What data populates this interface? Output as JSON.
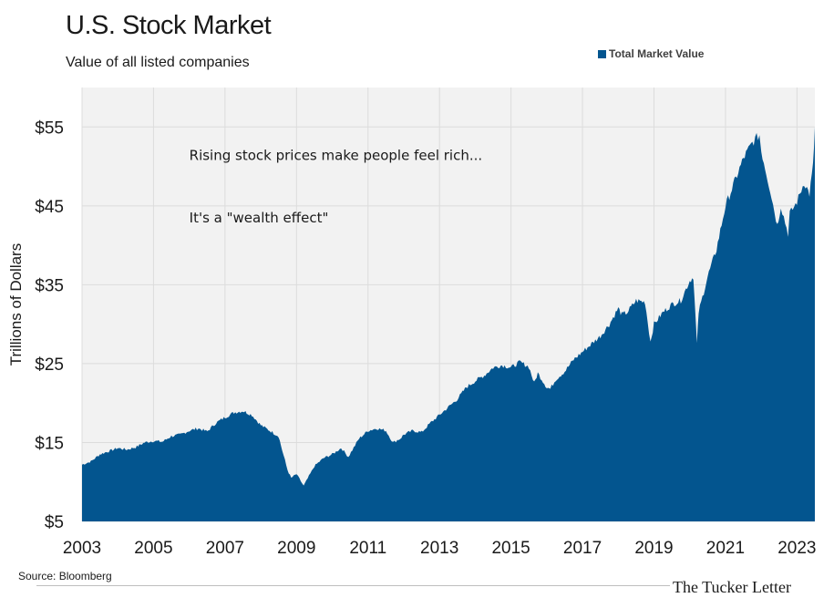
{
  "chart_data": {
    "type": "area",
    "title": "U.S. Stock Market",
    "subtitle": "Value of all listed companies",
    "ylabel": "Trillions of Dollars",
    "xlabel": "",
    "ylim": [
      5,
      60
    ],
    "xlim": [
      2003.0,
      2023.5
    ],
    "yticks": [
      5,
      15,
      25,
      35,
      45,
      55
    ],
    "ytick_labels": [
      "$5",
      "$15",
      "$25",
      "$35",
      "$45",
      "$55"
    ],
    "xticks": [
      2003,
      2005,
      2007,
      2009,
      2011,
      2013,
      2015,
      2017,
      2019,
      2021,
      2023
    ],
    "xtick_labels": [
      "2003",
      "2005",
      "2007",
      "2009",
      "2011",
      "2013",
      "2015",
      "2017",
      "2019",
      "2021",
      "2023"
    ],
    "grid": true,
    "legend_position": "top-right",
    "colors": {
      "series": "#03558f",
      "plot_bg": "#f2f2f2",
      "grid": "#dcdcdc"
    },
    "series": [
      {
        "name": "Total Market Value",
        "x": [
          2003.0,
          2003.25,
          2003.5,
          2003.75,
          2004.0,
          2004.25,
          2004.5,
          2004.75,
          2005.0,
          2005.25,
          2005.5,
          2005.75,
          2006.0,
          2006.25,
          2006.5,
          2006.75,
          2007.0,
          2007.25,
          2007.5,
          2007.75,
          2008.0,
          2008.25,
          2008.5,
          2008.6,
          2008.75,
          2008.85,
          2009.0,
          2009.2,
          2009.5,
          2009.75,
          2010.0,
          2010.25,
          2010.45,
          2010.75,
          2011.0,
          2011.25,
          2011.5,
          2011.7,
          2011.9,
          2012.0,
          2012.25,
          2012.5,
          2012.75,
          2013.0,
          2013.25,
          2013.5,
          2013.75,
          2014.0,
          2014.25,
          2014.5,
          2014.75,
          2015.0,
          2015.25,
          2015.5,
          2015.65,
          2015.75,
          2016.0,
          2016.1,
          2016.25,
          2016.5,
          2016.75,
          2017.0,
          2017.25,
          2017.5,
          2017.75,
          2018.0,
          2018.1,
          2018.25,
          2018.5,
          2018.75,
          2018.9,
          2019.0,
          2019.25,
          2019.5,
          2019.75,
          2020.0,
          2020.1,
          2020.2,
          2020.25,
          2020.5,
          2020.75,
          2021.0,
          2021.25,
          2021.5,
          2021.75,
          2021.95,
          2022.0,
          2022.25,
          2022.45,
          2022.55,
          2022.75,
          2022.8,
          2023.0,
          2023.2,
          2023.35,
          2023.45,
          2023.5
        ],
        "values": [
          12.2,
          12.6,
          13.5,
          13.9,
          14.3,
          14.1,
          14.4,
          15.0,
          15.2,
          15.1,
          15.8,
          16.0,
          16.5,
          16.8,
          16.4,
          17.5,
          18.2,
          18.8,
          19.0,
          18.5,
          17.2,
          16.5,
          15.8,
          14.0,
          11.5,
          10.5,
          11.0,
          9.5,
          12.0,
          13.0,
          13.5,
          14.3,
          13.2,
          15.5,
          16.5,
          16.8,
          16.5,
          15.0,
          15.5,
          16.0,
          16.5,
          16.3,
          17.5,
          18.5,
          19.5,
          20.5,
          22.0,
          22.8,
          23.5,
          24.5,
          24.8,
          24.5,
          25.2,
          24.6,
          22.5,
          23.8,
          22.0,
          21.8,
          23.0,
          24.0,
          25.5,
          26.5,
          27.5,
          28.5,
          30.0,
          32.0,
          31.2,
          31.5,
          33.0,
          32.8,
          27.8,
          30.0,
          31.5,
          32.5,
          33.0,
          35.5,
          36.0,
          27.5,
          31.5,
          36.0,
          39.5,
          45.0,
          48.0,
          51.0,
          53.0,
          54.0,
          52.0,
          47.0,
          42.5,
          45.0,
          41.5,
          44.0,
          45.5,
          48.0,
          46.5,
          50.0,
          55.0
        ]
      }
    ],
    "annotations": [
      "Rising stock prices make people feel rich...",
      "It's a \"wealth effect\""
    ]
  },
  "footer": {
    "source": "Source: Bloomberg",
    "brand": "The Tucker Letter"
  }
}
